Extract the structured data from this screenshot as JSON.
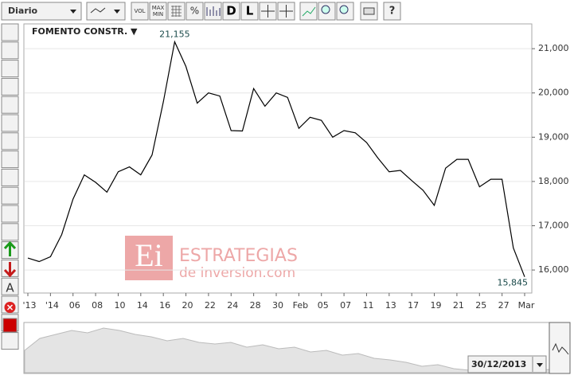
{
  "toolbar": {
    "period": "Diario",
    "vol": "VOL",
    "maxmin": [
      "MAX",
      "MIN"
    ],
    "percent": "%",
    "d": "D",
    "l": "L",
    "help": "?",
    "text_tool": "A"
  },
  "watermark": {
    "logo": "Ei",
    "name": "ESTRATEGIAS",
    "site": "de inversion.com"
  },
  "navigator": {
    "date": "30/12/2013"
  },
  "chart_data": {
    "type": "line",
    "title": "FOMENTO CONSTR. ▼",
    "categories": [
      "'13",
      null,
      "'14",
      null,
      "06",
      null,
      "08",
      null,
      "10",
      null,
      "14",
      null,
      "16",
      null,
      "20",
      null,
      "22",
      null,
      "24",
      null,
      "28",
      null,
      "30",
      null,
      "Feb",
      null,
      "05",
      null,
      "07",
      null,
      "11",
      null,
      "13",
      null,
      "17",
      null,
      "19",
      null,
      "21",
      null,
      "25",
      null,
      "27",
      null,
      "Mar"
    ],
    "series": [
      {
        "name": "FOMENTO CONSTR.",
        "color": "#000000",
        "values": [
          16270,
          16190,
          16300,
          16800,
          17600,
          18150,
          17980,
          17760,
          18220,
          18330,
          18150,
          18600,
          19800,
          21155,
          20600,
          19770,
          20000,
          19930,
          19150,
          19140,
          20100,
          19700,
          20000,
          19900,
          19200,
          19450,
          19380,
          19000,
          19150,
          19100,
          18880,
          18530,
          18220,
          18250,
          18020,
          17800,
          17460,
          18300,
          18500,
          18500,
          17880,
          18050,
          18050,
          16500,
          15845
        ],
        "value_labels": [
          null,
          null,
          null,
          null,
          null,
          null,
          null,
          null,
          null,
          null,
          null,
          null,
          null,
          "21,155",
          null,
          null,
          null,
          null,
          null,
          null,
          null,
          null,
          null,
          null,
          null,
          null,
          null,
          null,
          null,
          null,
          null,
          null,
          null,
          null,
          null,
          null,
          null,
          null,
          null,
          null,
          null,
          null,
          null,
          null,
          "15,845"
        ]
      }
    ],
    "ylim": [
      15480,
      21560
    ],
    "yticks": [
      {
        "value": 16000,
        "label": "16,000"
      },
      {
        "value": 17000,
        "label": "17,000"
      },
      {
        "value": 18000,
        "label": "18,000"
      },
      {
        "value": 19000,
        "label": "19,000"
      },
      {
        "value": 20000,
        "label": "20,000"
      },
      {
        "value": 21000,
        "label": "21,000"
      }
    ],
    "grid": true
  }
}
